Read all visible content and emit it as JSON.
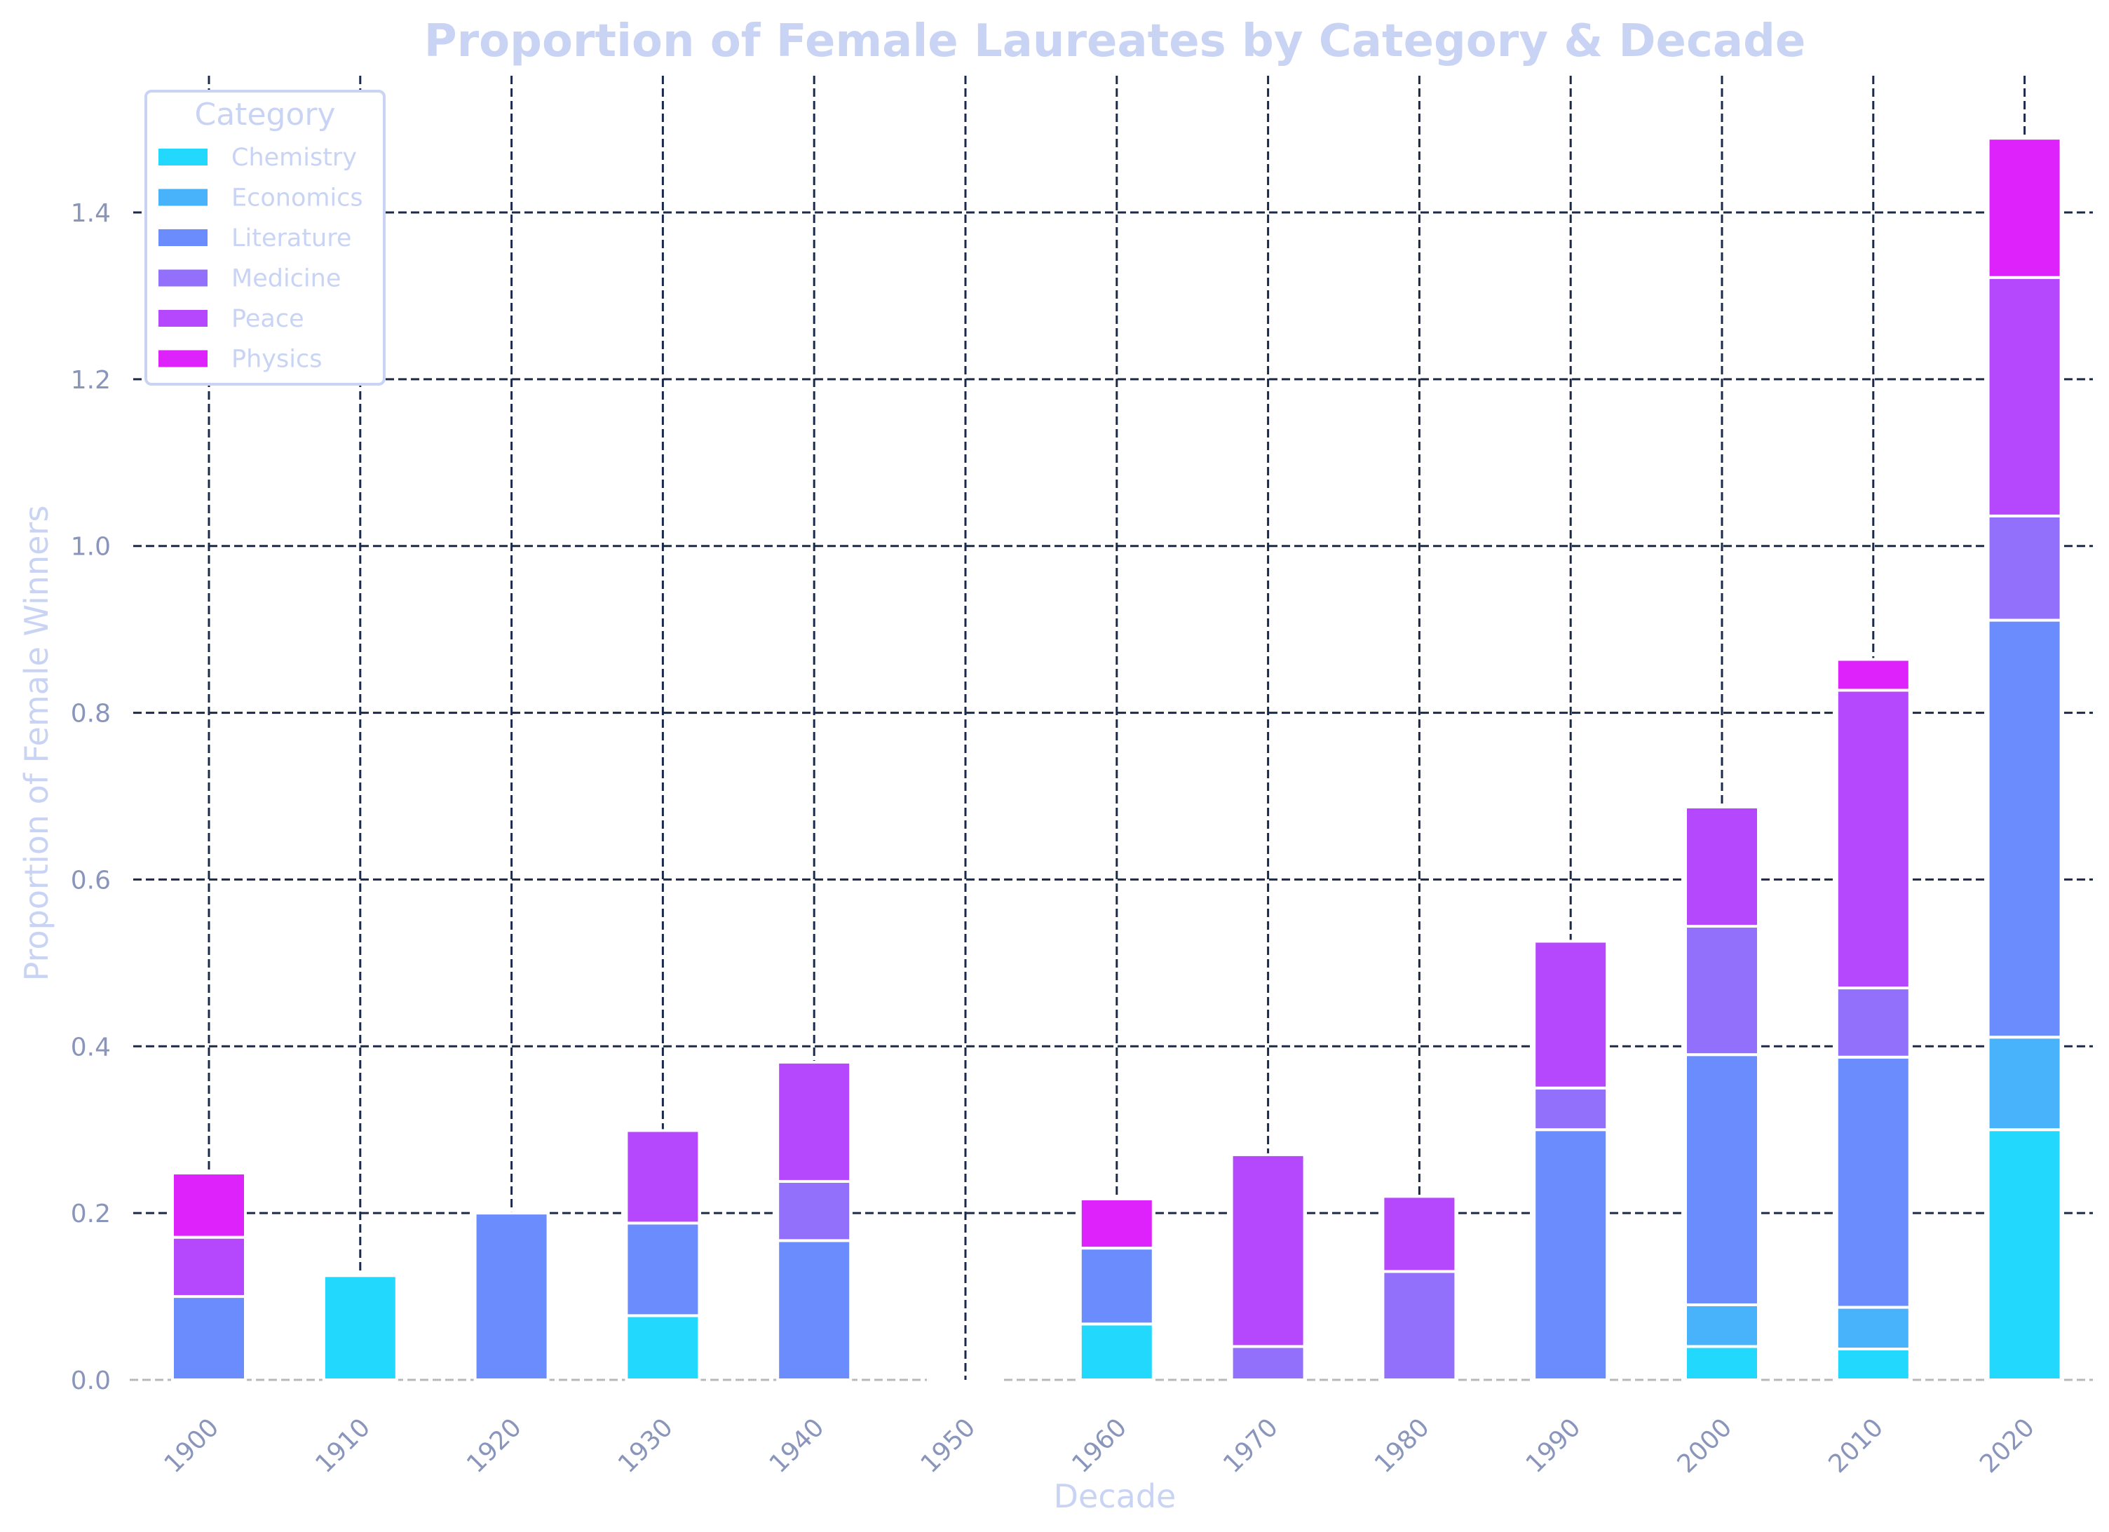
{
  "chart_data": {
    "type": "bar",
    "stacked": true,
    "title": "Proportion of Female Laureates by Category & Decade",
    "xlabel": "Decade",
    "ylabel": "Proportion of Female Winners",
    "categories": [
      "1900",
      "1910",
      "1920",
      "1930",
      "1940",
      "1950",
      "1960",
      "1970",
      "1980",
      "1990",
      "2000",
      "2010",
      "2020"
    ],
    "ylim": [
      0,
      1.56
    ],
    "yticks": [
      0.0,
      0.2,
      0.4,
      0.6,
      0.8,
      1.0,
      1.2,
      1.4
    ],
    "ytick_labels": [
      "0.0",
      "0.2",
      "0.4",
      "0.6",
      "0.8",
      "1.0",
      "1.2",
      "1.4"
    ],
    "grid": true,
    "legend_title": "Category",
    "legend_position": "upper-left",
    "series": [
      {
        "name": "Chemistry",
        "color": "#22d9fd",
        "values": [
          0,
          0.125,
          0,
          0.077,
          0,
          0,
          0.067,
          0,
          0,
          0,
          0.04,
          0.037,
          0.3
        ]
      },
      {
        "name": "Economics",
        "color": "#48b3fb",
        "values": [
          0,
          0,
          0,
          0,
          0,
          0,
          0,
          0,
          0,
          0,
          0.05,
          0.05,
          0.111
        ]
      },
      {
        "name": "Literature",
        "color": "#6b8cfc",
        "values": [
          0.1,
          0,
          0.2,
          0.111,
          0.167,
          0,
          0.091,
          0,
          0,
          0.3,
          0.3,
          0.3,
          0.5
        ]
      },
      {
        "name": "Medicine",
        "color": "#9370fb",
        "values": [
          0,
          0,
          0,
          0,
          0.071,
          0,
          0,
          0.04,
          0.13,
          0.05,
          0.154,
          0.083,
          0.125
        ]
      },
      {
        "name": "Peace",
        "color": "#b547fc",
        "values": [
          0.071,
          0,
          0,
          0.111,
          0.143,
          0,
          0,
          0.23,
          0.09,
          0.176,
          0.143,
          0.357,
          0.286
        ]
      },
      {
        "name": "Physics",
        "color": "#dd22fb",
        "values": [
          0.077,
          0,
          0,
          0,
          0,
          0,
          0.059,
          0,
          0,
          0,
          0,
          0.037,
          0.167
        ]
      }
    ]
  }
}
